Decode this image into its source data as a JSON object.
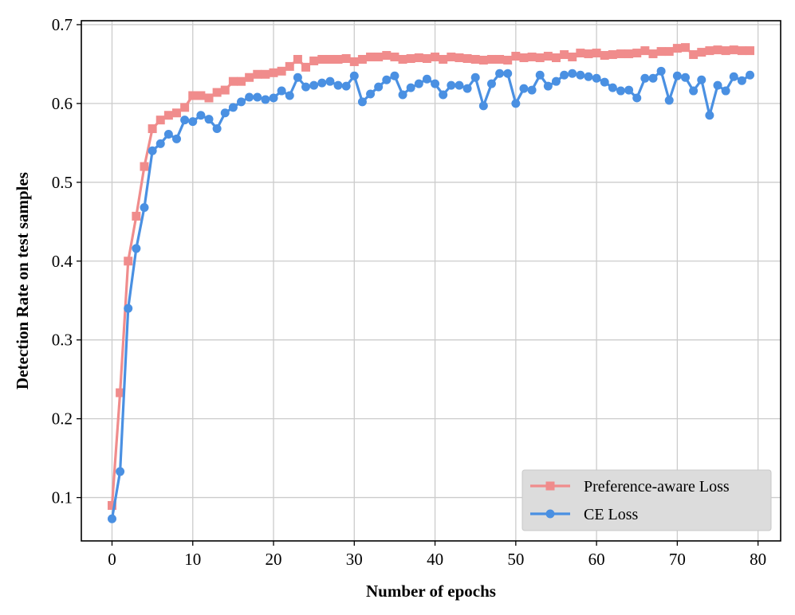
{
  "chart_data": {
    "type": "line",
    "xlabel": "Number of epochs",
    "ylabel": "Detection Rate on test samples",
    "xlim": [
      -3.8,
      82.8
    ],
    "ylim": [
      0.045,
      0.705
    ],
    "xticks": [
      0,
      10,
      20,
      30,
      40,
      50,
      60,
      70,
      80
    ],
    "xtick_labels": [
      "0",
      "10",
      "20",
      "30",
      "40",
      "50",
      "60",
      "70",
      "80"
    ],
    "yticks": [
      0.1,
      0.2,
      0.3,
      0.4,
      0.5,
      0.6,
      0.7
    ],
    "ytick_labels": [
      "0.1",
      "0.2",
      "0.3",
      "0.4",
      "0.5",
      "0.6",
      "0.7"
    ],
    "grid": true,
    "legend_position": "lower-right",
    "x": [
      0,
      1,
      2,
      3,
      4,
      5,
      6,
      7,
      8,
      9,
      10,
      11,
      12,
      13,
      14,
      15,
      16,
      17,
      18,
      19,
      20,
      21,
      22,
      23,
      24,
      25,
      26,
      27,
      28,
      29,
      30,
      31,
      32,
      33,
      34,
      35,
      36,
      37,
      38,
      39,
      40,
      41,
      42,
      43,
      44,
      45,
      46,
      47,
      48,
      49,
      50,
      51,
      52,
      53,
      54,
      55,
      56,
      57,
      58,
      59,
      60,
      61,
      62,
      63,
      64,
      65,
      66,
      67,
      68,
      69,
      70,
      71,
      72,
      73,
      74,
      75,
      76,
      77,
      78,
      79
    ],
    "series": [
      {
        "name": "Preference-aware Loss",
        "color": "#f08c8c",
        "marker": "square",
        "values": [
          0.09,
          0.233,
          0.4,
          0.457,
          0.52,
          0.568,
          0.579,
          0.585,
          0.588,
          0.595,
          0.61,
          0.61,
          0.607,
          0.614,
          0.617,
          0.628,
          0.628,
          0.633,
          0.637,
          0.637,
          0.639,
          0.641,
          0.647,
          0.656,
          0.646,
          0.654,
          0.656,
          0.656,
          0.656,
          0.657,
          0.653,
          0.656,
          0.659,
          0.659,
          0.661,
          0.659,
          0.656,
          0.657,
          0.658,
          0.657,
          0.659,
          0.656,
          0.659,
          0.658,
          0.657,
          0.656,
          0.655,
          0.656,
          0.656,
          0.655,
          0.66,
          0.658,
          0.659,
          0.658,
          0.66,
          0.658,
          0.662,
          0.659,
          0.664,
          0.663,
          0.664,
          0.661,
          0.662,
          0.663,
          0.663,
          0.664,
          0.667,
          0.663,
          0.666,
          0.666,
          0.67,
          0.671,
          0.662,
          0.665,
          0.667,
          0.668,
          0.667,
          0.668,
          0.667,
          0.667
        ]
      },
      {
        "name": "CE Loss",
        "color": "#4a90e2",
        "marker": "circle",
        "values": [
          0.073,
          0.133,
          0.34,
          0.416,
          0.468,
          0.54,
          0.549,
          0.561,
          0.555,
          0.579,
          0.577,
          0.585,
          0.58,
          0.568,
          0.588,
          0.595,
          0.602,
          0.608,
          0.608,
          0.605,
          0.607,
          0.616,
          0.61,
          0.633,
          0.621,
          0.623,
          0.626,
          0.628,
          0.623,
          0.622,
          0.635,
          0.602,
          0.612,
          0.621,
          0.63,
          0.635,
          0.611,
          0.62,
          0.625,
          0.631,
          0.625,
          0.611,
          0.623,
          0.623,
          0.619,
          0.633,
          0.597,
          0.625,
          0.638,
          0.638,
          0.6,
          0.619,
          0.617,
          0.636,
          0.622,
          0.628,
          0.636,
          0.638,
          0.636,
          0.634,
          0.632,
          0.627,
          0.62,
          0.616,
          0.617,
          0.607,
          0.632,
          0.632,
          0.641,
          0.604,
          0.635,
          0.633,
          0.616,
          0.63,
          0.585,
          0.623,
          0.616,
          0.634,
          0.629,
          0.636
        ]
      }
    ]
  }
}
